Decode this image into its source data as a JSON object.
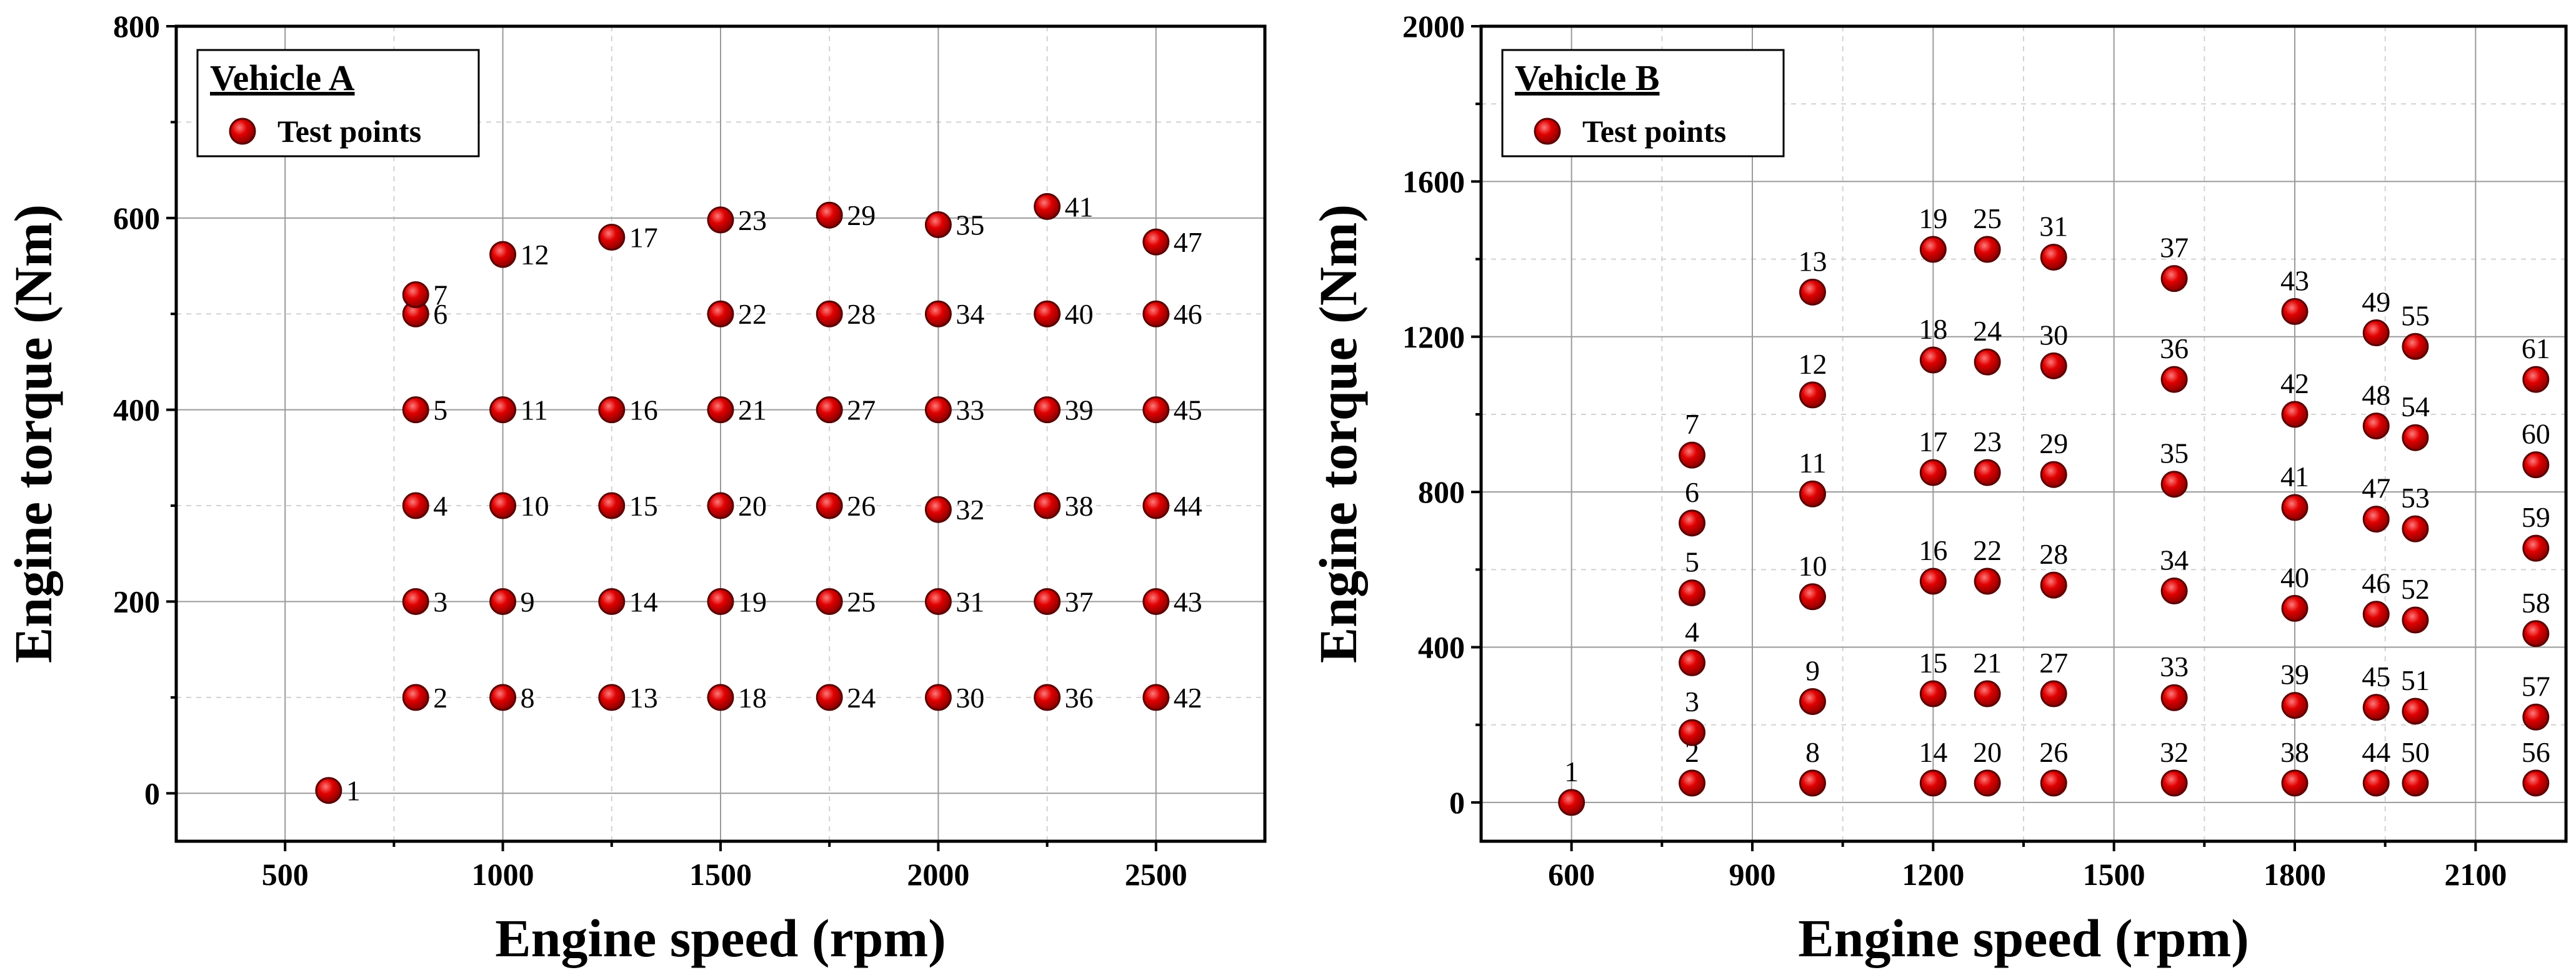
{
  "chart_data": [
    {
      "type": "scatter",
      "legend_title": "Vehicle A",
      "legend_entry": "Test points",
      "legend_position": "top-left",
      "xlabel": "Engine speed (rpm)",
      "ylabel": "Engine torque (Nm)",
      "xlim": [
        250,
        2750
      ],
      "ylim": [
        -50,
        800
      ],
      "xticks": [
        500,
        1000,
        1500,
        2000,
        2500
      ],
      "yticks": [
        0,
        200,
        400,
        600,
        800
      ],
      "xminor": [
        750,
        1250,
        1750,
        2250
      ],
      "yminor": [
        100,
        300,
        500,
        700
      ],
      "label_position": "right",
      "marker_color": "#dd0000",
      "points": [
        {
          "id": "1",
          "x": 600,
          "y": 3
        },
        {
          "id": "2",
          "x": 800,
          "y": 100
        },
        {
          "id": "3",
          "x": 800,
          "y": 200
        },
        {
          "id": "4",
          "x": 800,
          "y": 300
        },
        {
          "id": "5",
          "x": 800,
          "y": 400
        },
        {
          "id": "6",
          "x": 800,
          "y": 500
        },
        {
          "id": "7",
          "x": 800,
          "y": 520
        },
        {
          "id": "8",
          "x": 1000,
          "y": 100
        },
        {
          "id": "9",
          "x": 1000,
          "y": 200
        },
        {
          "id": "10",
          "x": 1000,
          "y": 300
        },
        {
          "id": "11",
          "x": 1000,
          "y": 400
        },
        {
          "id": "12",
          "x": 1000,
          "y": 562
        },
        {
          "id": "13",
          "x": 1250,
          "y": 100
        },
        {
          "id": "14",
          "x": 1250,
          "y": 200
        },
        {
          "id": "15",
          "x": 1250,
          "y": 300
        },
        {
          "id": "16",
          "x": 1250,
          "y": 400
        },
        {
          "id": "17",
          "x": 1250,
          "y": 580
        },
        {
          "id": "18",
          "x": 1500,
          "y": 100
        },
        {
          "id": "19",
          "x": 1500,
          "y": 200
        },
        {
          "id": "20",
          "x": 1500,
          "y": 300
        },
        {
          "id": "21",
          "x": 1500,
          "y": 400
        },
        {
          "id": "22",
          "x": 1500,
          "y": 500
        },
        {
          "id": "23",
          "x": 1500,
          "y": 598
        },
        {
          "id": "24",
          "x": 1750,
          "y": 100
        },
        {
          "id": "25",
          "x": 1750,
          "y": 200
        },
        {
          "id": "26",
          "x": 1750,
          "y": 300
        },
        {
          "id": "27",
          "x": 1750,
          "y": 400
        },
        {
          "id": "28",
          "x": 1750,
          "y": 500
        },
        {
          "id": "29",
          "x": 1750,
          "y": 603
        },
        {
          "id": "30",
          "x": 2000,
          "y": 100
        },
        {
          "id": "31",
          "x": 2000,
          "y": 200
        },
        {
          "id": "32",
          "x": 2000,
          "y": 296
        },
        {
          "id": "33",
          "x": 2000,
          "y": 400
        },
        {
          "id": "34",
          "x": 2000,
          "y": 500
        },
        {
          "id": "35",
          "x": 2000,
          "y": 593
        },
        {
          "id": "36",
          "x": 2250,
          "y": 100
        },
        {
          "id": "37",
          "x": 2250,
          "y": 200
        },
        {
          "id": "38",
          "x": 2250,
          "y": 300
        },
        {
          "id": "39",
          "x": 2250,
          "y": 400
        },
        {
          "id": "40",
          "x": 2250,
          "y": 500
        },
        {
          "id": "41",
          "x": 2250,
          "y": 612
        },
        {
          "id": "42",
          "x": 2500,
          "y": 100
        },
        {
          "id": "43",
          "x": 2500,
          "y": 200
        },
        {
          "id": "44",
          "x": 2500,
          "y": 300
        },
        {
          "id": "45",
          "x": 2500,
          "y": 400
        },
        {
          "id": "46",
          "x": 2500,
          "y": 500
        },
        {
          "id": "47",
          "x": 2500,
          "y": 575
        }
      ]
    },
    {
      "type": "scatter",
      "legend_title": "Vehicle B",
      "legend_entry": "Test points",
      "legend_position": "top-left",
      "xlabel": "Engine speed (rpm)",
      "ylabel": "Engine torque (Nm)",
      "xlim": [
        450,
        2250
      ],
      "ylim": [
        -100,
        2000
      ],
      "xticks": [
        600,
        900,
        1200,
        1500,
        1800,
        2100
      ],
      "yticks": [
        0,
        400,
        800,
        1200,
        1600,
        2000
      ],
      "xminor": [
        750,
        1050,
        1350,
        1650,
        1950
      ],
      "yminor": [
        200,
        600,
        1000,
        1400,
        1800
      ],
      "label_position": "above",
      "marker_color": "#dd0000",
      "points": [
        {
          "id": "1",
          "x": 600,
          "y": 0
        },
        {
          "id": "2",
          "x": 800,
          "y": 50
        },
        {
          "id": "3",
          "x": 800,
          "y": 180
        },
        {
          "id": "4",
          "x": 800,
          "y": 360
        },
        {
          "id": "5",
          "x": 800,
          "y": 540
        },
        {
          "id": "6",
          "x": 800,
          "y": 720
        },
        {
          "id": "7",
          "x": 800,
          "y": 895
        },
        {
          "id": "8",
          "x": 1000,
          "y": 50
        },
        {
          "id": "9",
          "x": 1000,
          "y": 260
        },
        {
          "id": "10",
          "x": 1000,
          "y": 530
        },
        {
          "id": "11",
          "x": 1000,
          "y": 795
        },
        {
          "id": "12",
          "x": 1000,
          "y": 1050
        },
        {
          "id": "13",
          "x": 1000,
          "y": 1315
        },
        {
          "id": "14",
          "x": 1200,
          "y": 50
        },
        {
          "id": "15",
          "x": 1200,
          "y": 280
        },
        {
          "id": "16",
          "x": 1200,
          "y": 570
        },
        {
          "id": "17",
          "x": 1200,
          "y": 850
        },
        {
          "id": "18",
          "x": 1200,
          "y": 1140
        },
        {
          "id": "19",
          "x": 1200,
          "y": 1425
        },
        {
          "id": "20",
          "x": 1290,
          "y": 50
        },
        {
          "id": "21",
          "x": 1290,
          "y": 280
        },
        {
          "id": "22",
          "x": 1290,
          "y": 570
        },
        {
          "id": "23",
          "x": 1290,
          "y": 850
        },
        {
          "id": "24",
          "x": 1290,
          "y": 1135
        },
        {
          "id": "25",
          "x": 1290,
          "y": 1425
        },
        {
          "id": "26",
          "x": 1400,
          "y": 50
        },
        {
          "id": "27",
          "x": 1400,
          "y": 280
        },
        {
          "id": "28",
          "x": 1400,
          "y": 560
        },
        {
          "id": "29",
          "x": 1400,
          "y": 845
        },
        {
          "id": "30",
          "x": 1400,
          "y": 1125
        },
        {
          "id": "31",
          "x": 1400,
          "y": 1405
        },
        {
          "id": "32",
          "x": 1600,
          "y": 50
        },
        {
          "id": "33",
          "x": 1600,
          "y": 270
        },
        {
          "id": "34",
          "x": 1600,
          "y": 545
        },
        {
          "id": "35",
          "x": 1600,
          "y": 820
        },
        {
          "id": "36",
          "x": 1600,
          "y": 1090
        },
        {
          "id": "37",
          "x": 1600,
          "y": 1350
        },
        {
          "id": "38",
          "x": 1800,
          "y": 50
        },
        {
          "id": "39",
          "x": 1800,
          "y": 250
        },
        {
          "id": "40",
          "x": 1800,
          "y": 500
        },
        {
          "id": "41",
          "x": 1800,
          "y": 760
        },
        {
          "id": "42",
          "x": 1800,
          "y": 1000
        },
        {
          "id": "43",
          "x": 1800,
          "y": 1265
        },
        {
          "id": "44",
          "x": 1935,
          "y": 50
        },
        {
          "id": "45",
          "x": 1935,
          "y": 245
        },
        {
          "id": "46",
          "x": 1935,
          "y": 485
        },
        {
          "id": "47",
          "x": 1935,
          "y": 730
        },
        {
          "id": "48",
          "x": 1935,
          "y": 970
        },
        {
          "id": "49",
          "x": 1935,
          "y": 1210
        },
        {
          "id": "50",
          "x": 2000,
          "y": 50
        },
        {
          "id": "51",
          "x": 2000,
          "y": 235
        },
        {
          "id": "52",
          "x": 2000,
          "y": 470
        },
        {
          "id": "53",
          "x": 2000,
          "y": 705
        },
        {
          "id": "54",
          "x": 2000,
          "y": 940
        },
        {
          "id": "55",
          "x": 2000,
          "y": 1175
        },
        {
          "id": "56",
          "x": 2200,
          "y": 50
        },
        {
          "id": "57",
          "x": 2200,
          "y": 220
        },
        {
          "id": "58",
          "x": 2200,
          "y": 435
        },
        {
          "id": "59",
          "x": 2200,
          "y": 655
        },
        {
          "id": "60",
          "x": 2200,
          "y": 870
        },
        {
          "id": "61",
          "x": 2200,
          "y": 1090
        }
      ]
    }
  ]
}
